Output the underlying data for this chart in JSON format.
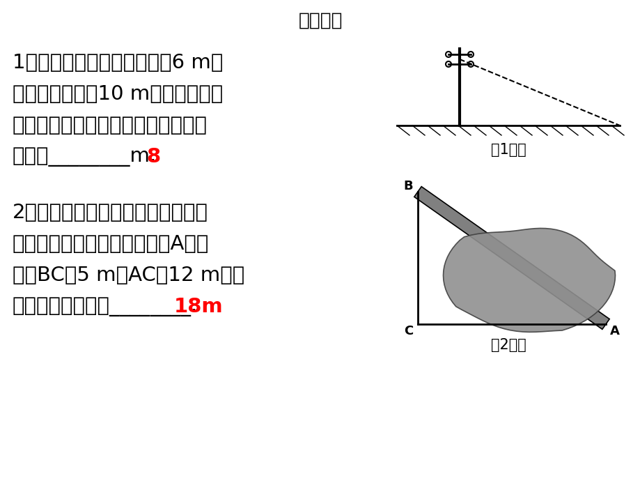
{
  "title": "课前预习",
  "title_fontsize": 19,
  "bg_color": "#ffffff",
  "text_color": "#000000",
  "red_color": "#ff0000",
  "q1_lines": [
    "1．如下图，从电线杆离地面6 m处",
    "向地面拉一条长10 m的固定缆绳，",
    "这条缆绳在地面的固定点距离电线杆",
    "底部有________m."
  ],
  "q1_answer": "8",
  "q2_lines": [
    "2．如上图，大风把一棵大树刮断，",
    "折断的一端恰好落在地面上的A处，",
    "量得BC＝5 m，AC＝12 m，则",
    "这棵大树的高度为________."
  ],
  "q2_answer": "18m",
  "fig1_label": "第1题图",
  "fig2_label": "第2题图",
  "line_fontsize": 21,
  "answer_fontsize": 21,
  "label_fontsize": 15
}
